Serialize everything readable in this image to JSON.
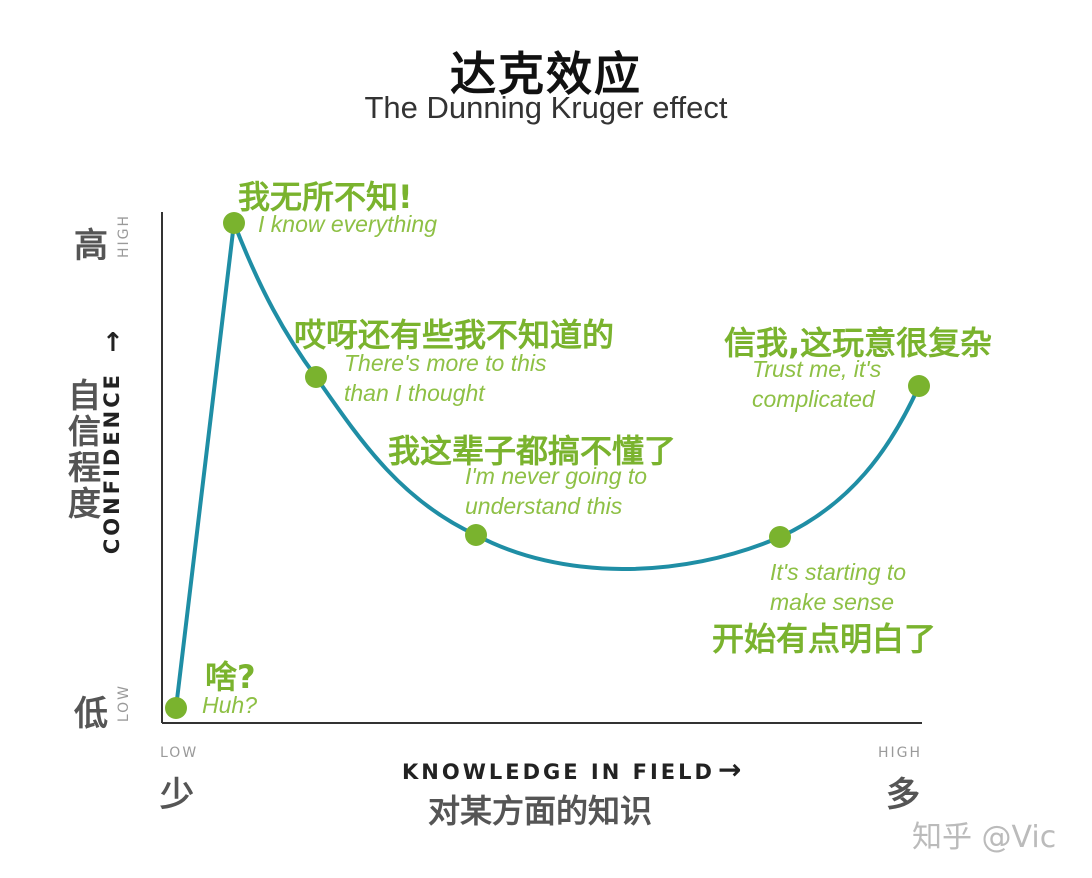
{
  "title_zh": "达克效应",
  "title_en": "The Dunning Kruger effect",
  "y_axis": {
    "high_zh": "高",
    "high_en": "HIGH",
    "low_zh": "低",
    "low_en": "LOW",
    "title_en": "CONFIDENCE",
    "arrow": "↑",
    "title_zh": "自信程度"
  },
  "x_axis": {
    "low_en": "LOW",
    "low_zh": "少",
    "high_en": "HIGH",
    "high_zh": "多",
    "title_en": "KNOWLEDGE IN FIELD",
    "arrow": "→",
    "title_zh": "对某方面的知识"
  },
  "stages": [
    {
      "zh": "啥?",
      "en": [
        "Huh?"
      ]
    },
    {
      "zh": "我无所不知!",
      "en": [
        "I know everything"
      ]
    },
    {
      "zh": "哎呀还有些我不知道的",
      "en": [
        "There's more to this",
        "than I thought"
      ]
    },
    {
      "zh": "我这辈子都搞不懂了",
      "en": [
        "I'm never going to",
        "understand this"
      ]
    },
    {
      "zh": "开始有点明白了",
      "en": [
        "It's starting to",
        "make sense"
      ]
    },
    {
      "zh": "信我,这玩意很复杂",
      "en": [
        "Trust me, it's",
        "complicated"
      ]
    }
  ],
  "colors": {
    "curve": "#1f8ea5",
    "point": "#7ab32e",
    "label": "#7ab32e",
    "axis": "#333333"
  },
  "watermark": "知乎 @Vic"
}
